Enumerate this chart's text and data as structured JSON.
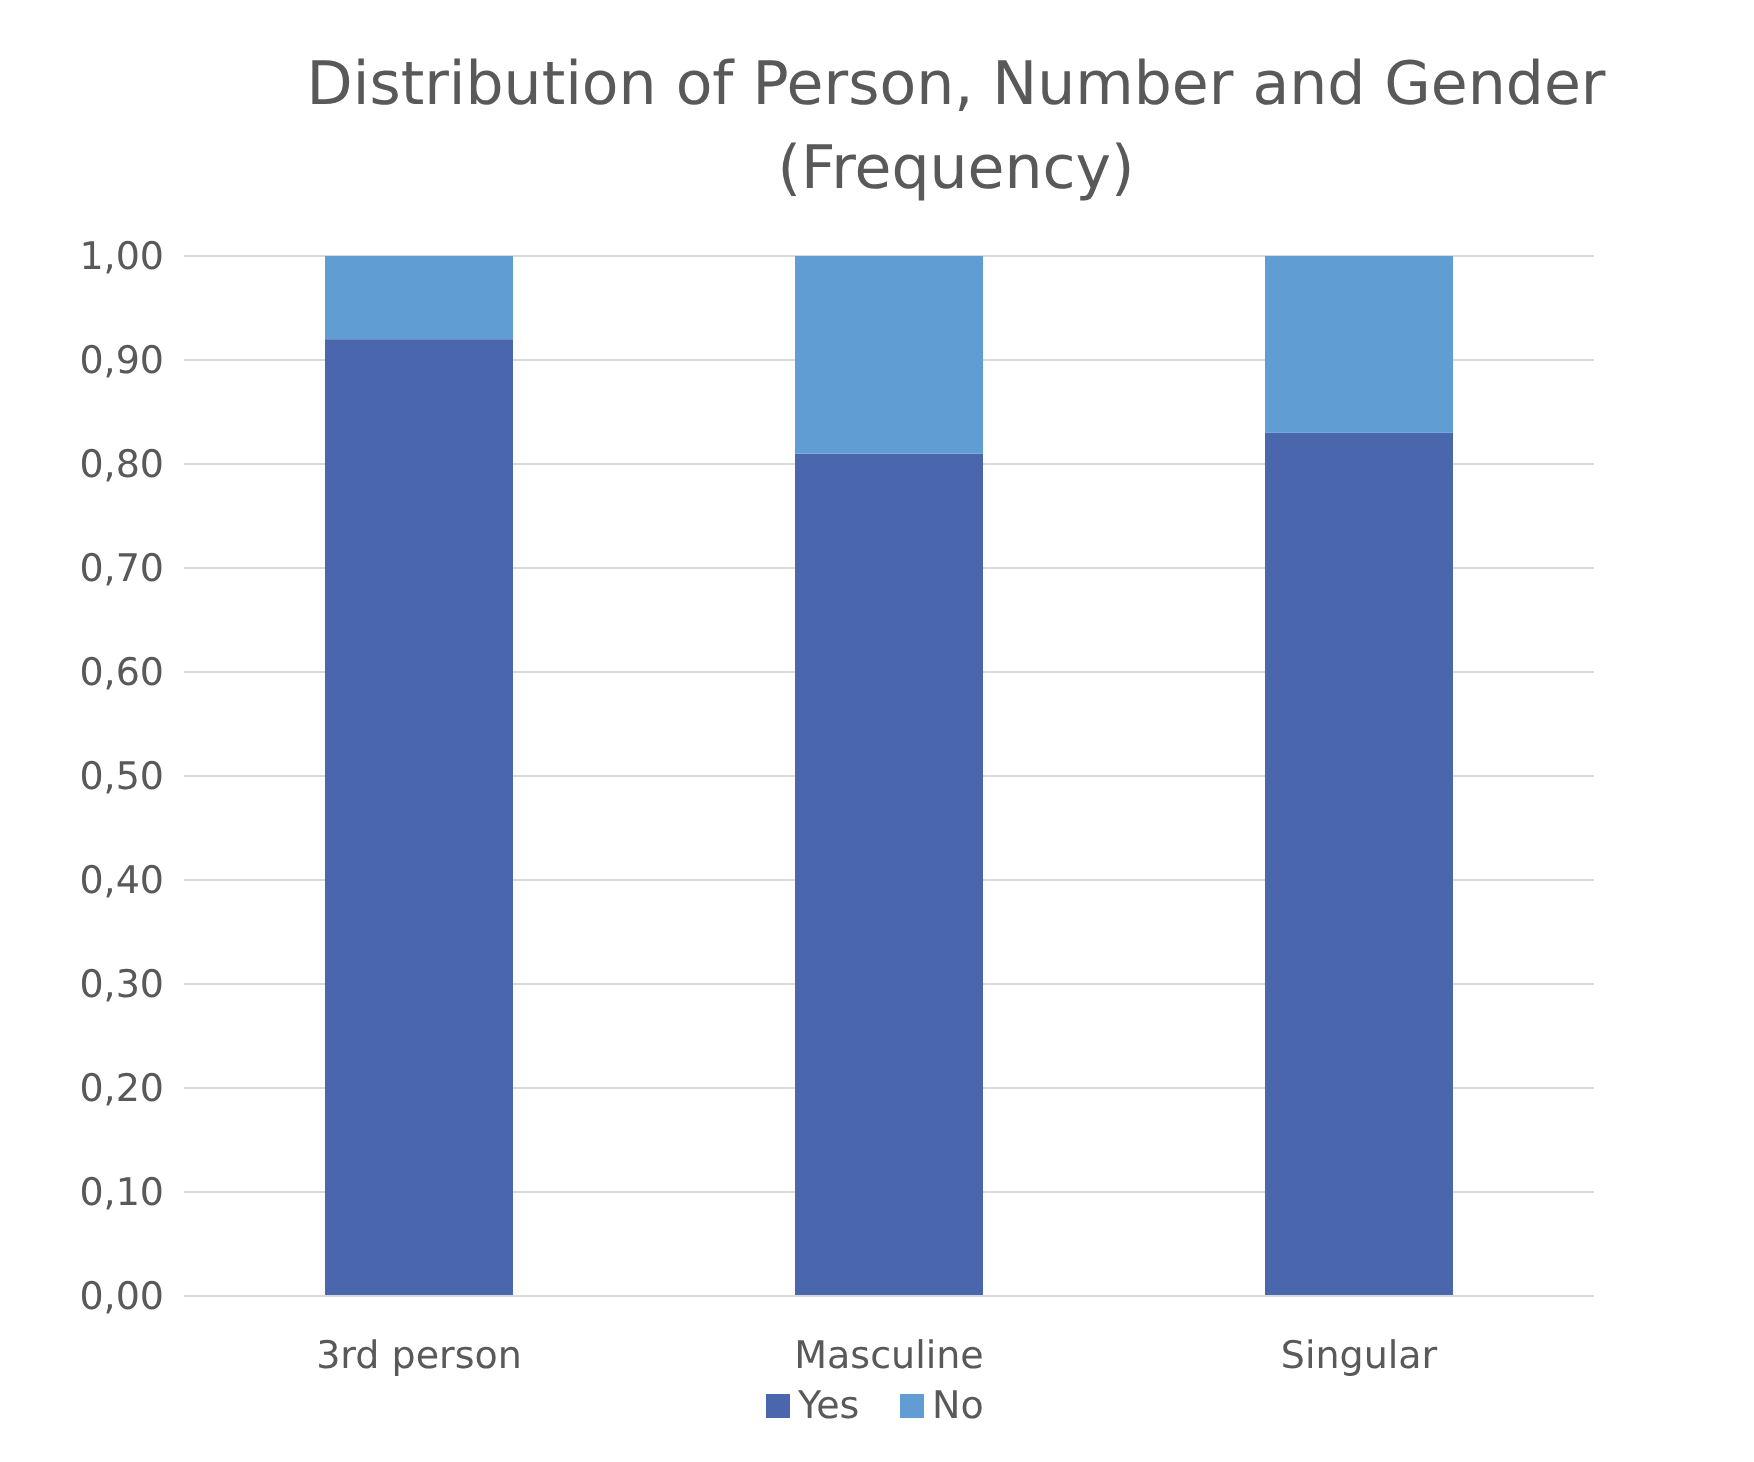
{
  "chart_data": {
    "type": "bar",
    "title": "Distribution of Person, Number and Gender (Frequency)",
    "categories": [
      "3rd person",
      "Masculine",
      "Singular"
    ],
    "series": [
      {
        "name": "Yes",
        "color": "#4a66ad",
        "values": [
          0.92,
          0.81,
          0.83
        ]
      },
      {
        "name": "No",
        "color": "#5f9dd3",
        "values": [
          0.08,
          0.19,
          0.17
        ]
      }
    ],
    "stacked": true,
    "ylim": [
      0,
      1
    ],
    "yticks": [
      {
        "value": 0,
        "label": "0,00"
      },
      {
        "value": 0.1,
        "label": "0,10"
      },
      {
        "value": 0.2,
        "label": "0,20"
      },
      {
        "value": 0.3,
        "label": "0,30"
      },
      {
        "value": 0.4,
        "label": "0,40"
      },
      {
        "value": 0.5,
        "label": "0,50"
      },
      {
        "value": 0.6,
        "label": "0,60"
      },
      {
        "value": 0.7,
        "label": "0,70"
      },
      {
        "value": 0.8,
        "label": "0,80"
      },
      {
        "value": 0.9,
        "label": "0,90"
      },
      {
        "value": 1,
        "label": "1,00"
      }
    ],
    "grid": "y",
    "legend": "bottom"
  }
}
